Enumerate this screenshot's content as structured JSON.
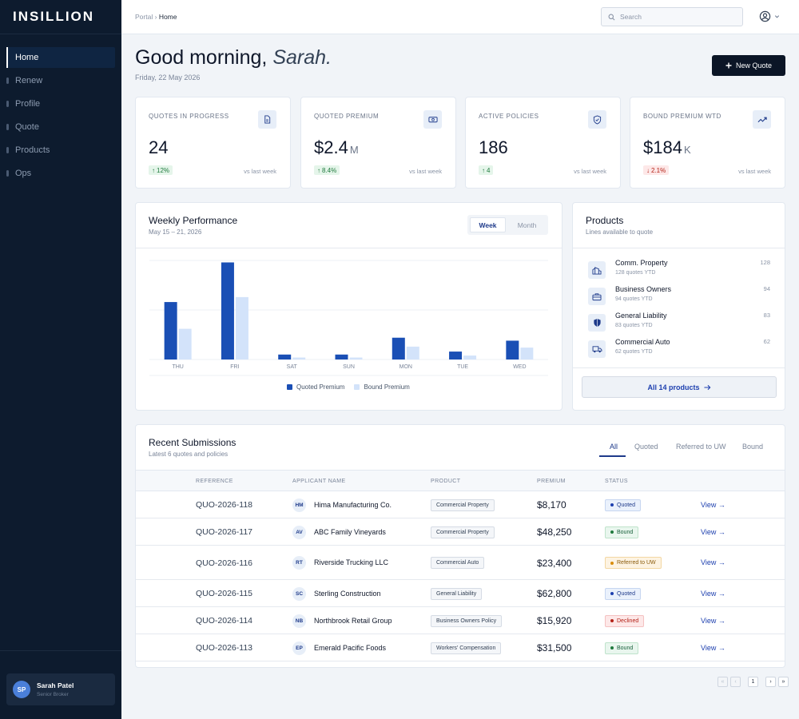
{
  "sidebar": {
    "brand": "INSILLION",
    "items": [
      {
        "label": "Home"
      },
      {
        "label": "Renew"
      },
      {
        "label": "Profile"
      },
      {
        "label": "Quote"
      },
      {
        "label": "Products"
      },
      {
        "label": "Ops"
      }
    ],
    "user": {
      "initials": "SP",
      "name": "Sarah Patel",
      "role": "Senior Broker"
    }
  },
  "topbar": {
    "breadcrumb_root": "Portal",
    "breadcrumb_sep": "›",
    "breadcrumb_current": "Home",
    "search_placeholder": "Search"
  },
  "greeting": {
    "prefix": "Good morning,",
    "name": "Sarah.",
    "date": "Friday, 22 May 2026",
    "new_quote_label": "New Quote"
  },
  "kpis": [
    {
      "label": "QUOTES IN PROGRESS",
      "value": "24",
      "unit": "",
      "delta": "12%",
      "direction": "up",
      "compare": "vs last week",
      "icon": "document-icon"
    },
    {
      "label": "QUOTED PREMIUM",
      "value": "$2.4",
      "unit": "M",
      "delta": "8.4%",
      "direction": "up",
      "compare": "vs last week",
      "icon": "cash-icon"
    },
    {
      "label": "ACTIVE POLICIES",
      "value": "186",
      "unit": "",
      "delta": "4",
      "direction": "up",
      "compare": "vs last week",
      "icon": "shield-check-icon"
    },
    {
      "label": "BOUND PREMIUM WTD",
      "value": "$184",
      "unit": "K",
      "delta": "2.1%",
      "direction": "down",
      "compare": "vs last week",
      "icon": "trend-up-icon"
    }
  ],
  "weekly": {
    "title": "Weekly Performance",
    "subtitle": "May 15 – 21, 2026",
    "toggle": [
      "Week",
      "Month"
    ],
    "selected": "Week"
  },
  "chart_data": {
    "type": "bar",
    "categories": [
      "THU",
      "FRI",
      "SAT",
      "SUN",
      "MON",
      "TUE",
      "WED"
    ],
    "series": [
      {
        "name": "Quoted Premium",
        "values": [
          58,
          98,
          5,
          5,
          22,
          8,
          19
        ],
        "color": "#1a4fb5"
      },
      {
        "name": "Bound Premium",
        "values": [
          31,
          63,
          2,
          2,
          13,
          4,
          12
        ],
        "color": "#d3e3fa"
      }
    ],
    "ylim": [
      0,
      100
    ],
    "grid": true,
    "legend": "bottom"
  },
  "products": {
    "title": "Products",
    "subtitle": "Lines available to quote",
    "items": [
      {
        "name": "Comm. Property",
        "sub": "128 quotes YTD",
        "count": "128",
        "icon": "building-icon"
      },
      {
        "name": "Business Owners",
        "sub": "94 quotes YTD",
        "count": "94",
        "icon": "briefcase-icon"
      },
      {
        "name": "General Liability",
        "sub": "83 quotes YTD",
        "count": "83",
        "icon": "shield-icon"
      },
      {
        "name": "Commercial Auto",
        "sub": "62 quotes YTD",
        "count": "62",
        "icon": "truck-icon"
      }
    ],
    "all_label": "All 14 products"
  },
  "submissions": {
    "title": "Recent Submissions",
    "subtitle": "Latest 6 quotes and policies",
    "tabs": [
      "All",
      "Quoted",
      "Referred to UW",
      "Bound"
    ],
    "selected_tab": "All",
    "columns": [
      "REFERENCE",
      "APPLICANT NAME",
      "PRODUCT",
      "PREMIUM",
      "STATUS"
    ],
    "rows": [
      {
        "ref": "QUO-2026-118",
        "initials": "HM",
        "applicant": "Hima Manufacturing Co.",
        "product": "Commercial Property",
        "premium": "$8,170",
        "status": "Quoted",
        "status_key": "quoted",
        "action": "View →"
      },
      {
        "ref": "QUO-2026-117",
        "initials": "AV",
        "applicant": "ABC Family Vineyards",
        "product": "Commercial Property",
        "premium": "$48,250",
        "status": "Bound",
        "status_key": "bound",
        "action": "View →"
      },
      {
        "ref": "QUO-2026-116",
        "initials": "RT",
        "applicant": "Riverside Trucking LLC",
        "product": "Commercial Auto",
        "premium": "$23,400",
        "status": "Referred to UW",
        "status_key": "referred",
        "action": "View →"
      },
      {
        "ref": "QUO-2026-115",
        "initials": "SC",
        "applicant": "Sterling Construction",
        "product": "General Liability",
        "premium": "$62,800",
        "status": "Quoted",
        "status_key": "quoted",
        "action": "View →"
      },
      {
        "ref": "QUO-2026-114",
        "initials": "NB",
        "applicant": "Northbrook Retail Group",
        "product": "Business Owners Policy",
        "premium": "$15,920",
        "status": "Declined",
        "status_key": "declined",
        "action": "View →"
      },
      {
        "ref": "QUO-2026-113",
        "initials": "EP",
        "applicant": "Emerald Pacific Foods",
        "product": "Workers' Compensation",
        "premium": "$31,500",
        "status": "Bound",
        "status_key": "bound",
        "action": "View →"
      }
    ]
  },
  "pagination": {
    "first": "«",
    "prev": "‹",
    "page": "1",
    "next": "›",
    "last": "»"
  }
}
